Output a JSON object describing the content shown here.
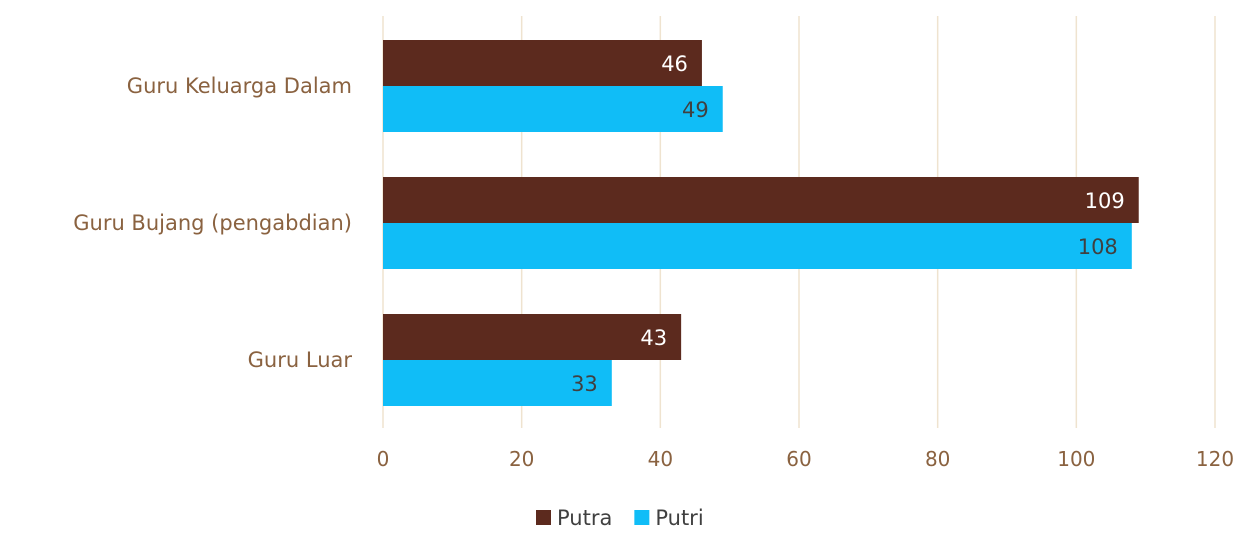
{
  "chart_data": {
    "type": "bar",
    "orientation": "horizontal",
    "title": "",
    "xlabel": "",
    "ylabel": "",
    "categories": [
      "Guru Keluarga Dalam",
      "Guru Bujang (pengabdian)",
      "Guru Luar"
    ],
    "series": [
      {
        "name": "Putra",
        "color": "#5C2A1E",
        "values": [
          46,
          109,
          43
        ]
      },
      {
        "name": "Putri",
        "color": "#10BDF7",
        "values": [
          49,
          108,
          33
        ]
      }
    ],
    "xlim": [
      0,
      120
    ],
    "xticks": [
      0,
      20,
      40,
      60,
      80,
      100,
      120
    ],
    "grid": true,
    "grid_color": "#EFE3CF",
    "label_color": "#8A6240",
    "data_label_colors": {
      "Putra": "#FFFFFF",
      "Putri": "#404040"
    },
    "data_labels": true,
    "legend_position": "bottom"
  }
}
